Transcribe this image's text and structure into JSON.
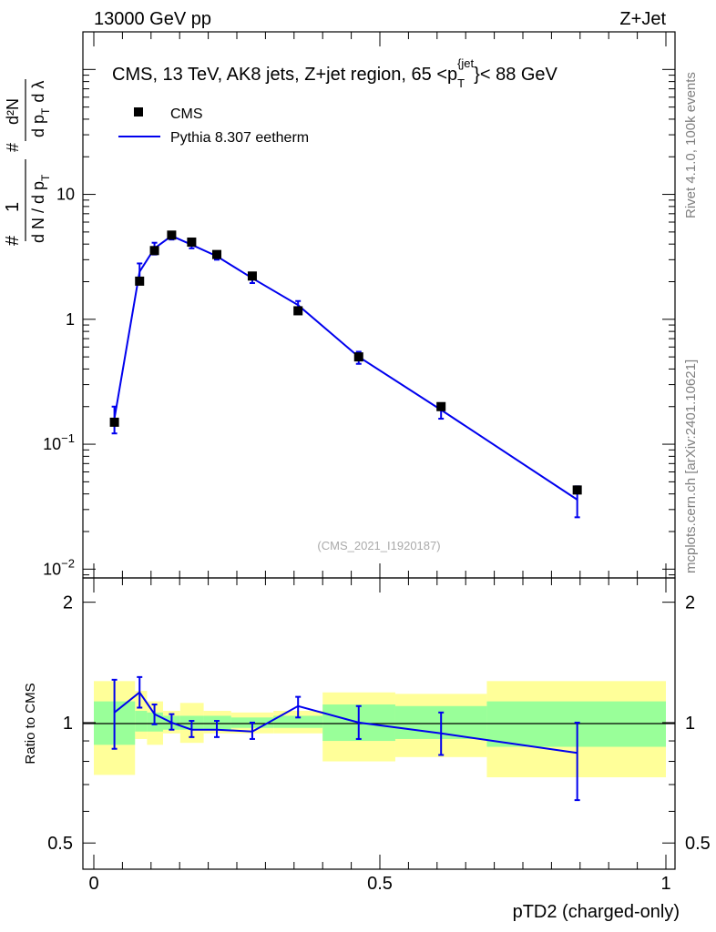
{
  "header": {
    "left": "13000 GeV pp",
    "right": "Z+Jet"
  },
  "side_text": {
    "top": "Rivet 4.1.0,  100k events",
    "bottom": "mcplots.cern.ch [arXiv:2401.10621]"
  },
  "colors": {
    "mc_line": "#0000ee",
    "band_inner": "#99ff99",
    "band_outer": "#ffff99",
    "data_marker": "#000000"
  },
  "chart_data": [
    {
      "type": "scatter",
      "panel": "main",
      "title_parts": {
        "prefix": "CMS, 13 TeV, AK8 jets, Z+jet region, 65 <p",
        "sub": "T",
        "sup": "{jet",
        "suffix": "}< 88 GeV"
      },
      "ylabel_parts": {
        "hash1": "#",
        "one": "1",
        "dN": "d N / d p",
        "T1": "T",
        "hash2": "#",
        "d2N": "d²N",
        "dpT": "d p",
        "T2": "T",
        "dl": "d λ"
      },
      "yscale": "log",
      "ylim": [
        0.0085,
        200
      ],
      "yticks": [
        {
          "value": 0.01,
          "base": "10",
          "exp": "−2"
        },
        {
          "value": 0.1,
          "base": "10",
          "exp": "−1"
        },
        {
          "value": 1,
          "base": "1",
          "exp": ""
        },
        {
          "value": 10,
          "base": "10",
          "exp": ""
        }
      ],
      "xlim": [
        -0.02,
        1.0
      ],
      "legend": {
        "position": "top-left",
        "entries": [
          {
            "label": "CMS",
            "style": "marker"
          },
          {
            "label": "Pythia 8.307 eetherm",
            "style": "line"
          }
        ]
      },
      "watermark": "(CMS_2021_I1920187)",
      "series": [
        {
          "name": "CMS",
          "x": [
            0.036,
            0.08,
            0.106,
            0.136,
            0.171,
            0.215,
            0.277,
            0.357,
            0.463,
            0.607,
            0.845
          ],
          "y": [
            0.15,
            2.02,
            3.55,
            4.72,
            4.15,
            3.3,
            2.22,
            1.17,
            0.5,
            0.2,
            0.043
          ]
        },
        {
          "name": "Pythia 8.307 eetherm",
          "x": [
            0.036,
            0.08,
            0.106,
            0.136,
            0.171,
            0.215,
            0.277,
            0.357,
            0.463,
            0.607,
            0.845
          ],
          "y": [
            0.16,
            2.4,
            3.7,
            4.65,
            3.95,
            3.2,
            2.13,
            1.3,
            0.5,
            0.188,
            0.036
          ],
          "err_low": [
            0.122,
            1.95,
            3.3,
            4.35,
            3.7,
            3.0,
            1.95,
            1.2,
            0.44,
            0.16,
            0.026
          ],
          "err_high": [
            0.2,
            2.8,
            4.1,
            4.95,
            4.2,
            3.45,
            2.35,
            1.4,
            0.55,
            0.21,
            0.046
          ]
        }
      ]
    },
    {
      "type": "line",
      "panel": "ratio",
      "ylabel": "Ratio to CMS",
      "xlabel": "pTD2 (charged-only)",
      "yscale": "log",
      "ylim": [
        0.43,
        2.3
      ],
      "yticks": [
        {
          "value": 0.5,
          "label": "0.5"
        },
        {
          "value": 1,
          "label": "1"
        },
        {
          "value": 2,
          "label": "2"
        }
      ],
      "xticks": [
        {
          "value": 0,
          "label": "0"
        },
        {
          "value": 0.5,
          "label": "0.5"
        },
        {
          "value": 1,
          "label": "1"
        }
      ],
      "reference": 1.0,
      "bands": {
        "edges": [
          0.0,
          0.072,
          0.093,
          0.121,
          0.151,
          0.192,
          0.24,
          0.314,
          0.4,
          0.527,
          0.687,
          1.0
        ],
        "inner_low": [
          0.88,
          0.95,
          0.95,
          0.96,
          0.96,
          0.96,
          0.97,
          0.97,
          0.9,
          0.91,
          0.87
        ],
        "inner_high": [
          1.13,
          1.07,
          1.06,
          1.04,
          1.04,
          1.04,
          1.03,
          1.04,
          1.11,
          1.1,
          1.13
        ],
        "outer_low": [
          0.74,
          0.91,
          0.88,
          0.94,
          0.89,
          0.94,
          0.94,
          0.94,
          0.8,
          0.82,
          0.73
        ],
        "outer_high": [
          1.27,
          1.2,
          1.13,
          1.07,
          1.12,
          1.07,
          1.06,
          1.07,
          1.19,
          1.18,
          1.27
        ]
      },
      "series": [
        {
          "name": "Pythia 8.307 eetherm",
          "x": [
            0.036,
            0.08,
            0.106,
            0.136,
            0.171,
            0.215,
            0.277,
            0.357,
            0.463,
            0.607,
            0.845
          ],
          "y": [
            1.06,
            1.19,
            1.05,
            1.0,
            0.96,
            0.96,
            0.95,
            1.1,
            1.0,
            0.94,
            0.84
          ],
          "err_low": [
            0.86,
            1.09,
            0.99,
            0.96,
            0.92,
            0.92,
            0.91,
            1.03,
            0.91,
            0.83,
            0.64
          ],
          "err_high": [
            1.28,
            1.3,
            1.11,
            1.05,
            1.01,
            1.01,
            1.0,
            1.16,
            1.1,
            1.06,
            1.0
          ]
        }
      ]
    }
  ]
}
